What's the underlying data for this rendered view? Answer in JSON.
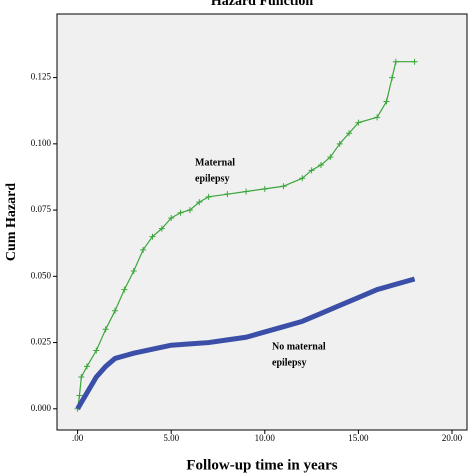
{
  "chart_data": {
    "type": "line",
    "title": "Hazard Function",
    "x_label": "Follow-up time in years",
    "y_label": "Cum Hazard",
    "xlim": [
      -1.1,
      20.8
    ],
    "ylim": [
      -0.008,
      0.149
    ],
    "xticks": [
      {
        "value": 0,
        "label": ".00"
      },
      {
        "value": 5,
        "label": "5.00"
      },
      {
        "value": 10,
        "label": "10.00"
      },
      {
        "value": 15,
        "label": "15.00"
      },
      {
        "value": 20,
        "label": "20.00"
      }
    ],
    "yticks": [
      {
        "value": 0,
        "label": "0.000"
      },
      {
        "value": 0.025,
        "label": "0.025"
      },
      {
        "value": 0.05,
        "label": "0.050"
      },
      {
        "value": 0.075,
        "label": "0.075"
      },
      {
        "value": 0.1,
        "label": "0.100"
      },
      {
        "value": 0.125,
        "label": "0.125"
      }
    ],
    "series": [
      {
        "color": "#3aa63a",
        "x": [
          0,
          0.1,
          0.2,
          0.5,
          1,
          1.5,
          2,
          2.5,
          3,
          3.5,
          4,
          4.5,
          5,
          5.5,
          6,
          6.5,
          7,
          8,
          9,
          10,
          11,
          12,
          12.5,
          13,
          13.5,
          14,
          14.5,
          15,
          16,
          16.5,
          16.8,
          17,
          18
        ],
        "values": [
          0,
          0.005,
          0.012,
          0.016,
          0.022,
          0.03,
          0.037,
          0.045,
          0.052,
          0.06,
          0.065,
          0.068,
          0.072,
          0.074,
          0.075,
          0.078,
          0.08,
          0.081,
          0.082,
          0.083,
          0.084,
          0.087,
          0.09,
          0.092,
          0.095,
          0.1,
          0.104,
          0.108,
          0.11,
          0.116,
          0.125,
          0.131,
          0.131
        ],
        "annotation": [
          "Maternal",
          "epilepsy"
        ]
      },
      {
        "color": "#3b4fa8",
        "x": [
          0,
          0.5,
          1,
          1.5,
          2,
          3,
          4,
          5,
          6,
          7,
          8,
          9,
          10,
          11,
          12,
          13,
          14,
          15,
          16,
          17,
          18
        ],
        "values": [
          0,
          0.006,
          0.012,
          0.016,
          0.019,
          0.021,
          0.0225,
          0.024,
          0.0245,
          0.025,
          0.026,
          0.027,
          0.029,
          0.031,
          0.033,
          0.036,
          0.039,
          0.042,
          0.045,
          0.047,
          0.049
        ],
        "annotation": [
          "No maternal",
          "epilepsy"
        ]
      }
    ]
  }
}
